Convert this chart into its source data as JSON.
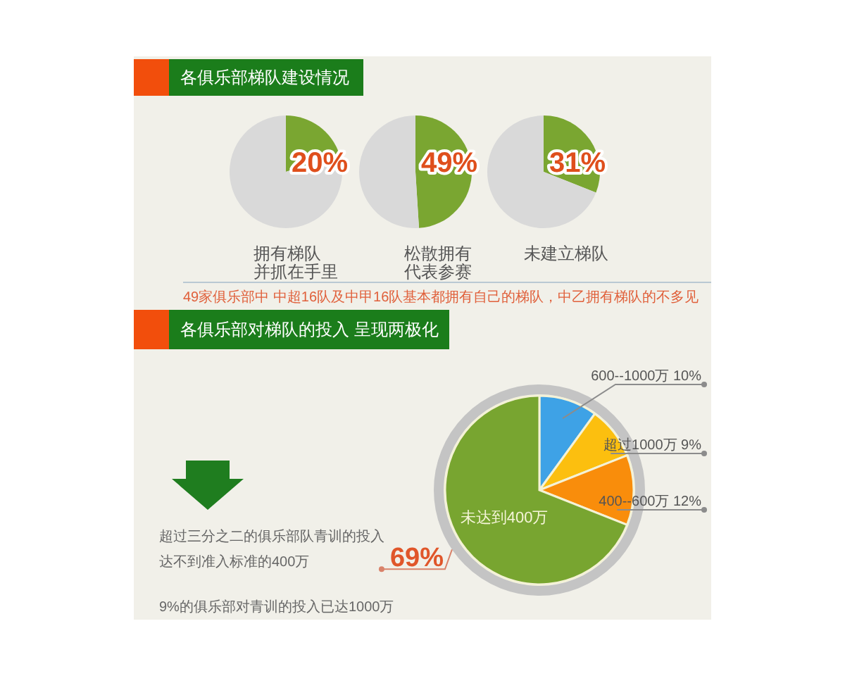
{
  "chart_data": [
    {
      "type": "other",
      "title": "各俱乐部梯队建设情况"
    },
    {
      "type": "pie",
      "title": "拥有梯队并抓在手里",
      "categories": [
        null,
        null
      ],
      "values": [
        20,
        80
      ],
      "colors": [
        "#7aa631",
        "#d9d9d9"
      ],
      "value_labels": [
        "20%",
        null
      ]
    },
    {
      "type": "pie",
      "title": "松散拥有代表参赛",
      "categories": [
        null,
        null
      ],
      "values": [
        49,
        51
      ],
      "colors": [
        "#7aa631",
        "#d9d9d9"
      ],
      "value_labels": [
        "49%",
        null
      ]
    },
    {
      "type": "pie",
      "title": "未建立梯队",
      "categories": [
        null,
        null
      ],
      "values": [
        31,
        69
      ],
      "colors": [
        "#7aa631",
        "#d9d9d9"
      ],
      "value_labels": [
        "31%",
        null
      ]
    },
    {
      "type": "other",
      "annotations": [
        "49家俱乐部中 中超16队及中甲16队基本都拥有自己的梯队，中乙拥有梯队的不多见"
      ]
    },
    {
      "type": "other",
      "title": "各俱乐部对梯队的投入 呈现两极化"
    },
    {
      "type": "pie",
      "categories": [
        "600--1000万",
        "超过1000万",
        "400--600万",
        "未达到400万"
      ],
      "values": [
        10,
        9,
        12,
        69
      ],
      "colors": [
        "#3ea2e6",
        "#fcbf0f",
        "#f98d0b",
        "#78a530"
      ],
      "value_labels": [
        "10%",
        "9%",
        "12%",
        "69%"
      ],
      "annotations": [
        "超过三分之二的俱乐部队青训的投入达不到准入标准的400万",
        "9%的俱乐部对青训的投入已达1000万"
      ]
    }
  ]
}
